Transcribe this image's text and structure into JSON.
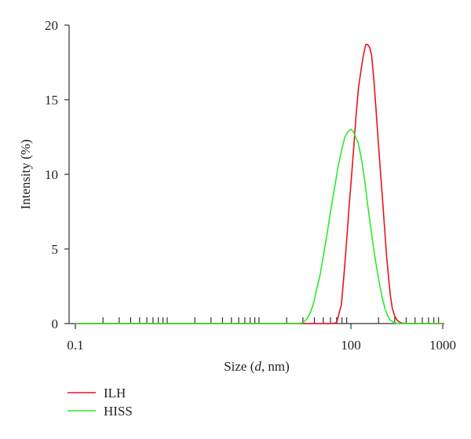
{
  "chart_data": {
    "type": "line",
    "xscale": "log",
    "xlim": [
      0.1,
      1000
    ],
    "ylim": [
      0,
      20
    ],
    "xticks": [
      {
        "value": 0.1,
        "label": "0.1"
      },
      {
        "value": 100,
        "label": "100"
      },
      {
        "value": 1000,
        "label": "1000"
      }
    ],
    "yticks": [
      {
        "value": 0,
        "label": "0"
      },
      {
        "value": 5,
        "label": "5"
      },
      {
        "value": 10,
        "label": "10"
      },
      {
        "value": 15,
        "label": "15"
      },
      {
        "value": 20,
        "label": "20"
      }
    ],
    "xlabel_prefix": "Size (",
    "xlabel_var": "d",
    "xlabel_suffix": ", nm)",
    "ylabel": "Intensity (%)",
    "grid": false,
    "legend_position": "bottom-left",
    "series": [
      {
        "name": "ILH",
        "color": "#e8141e",
        "points": [
          [
            0.1,
            0
          ],
          [
            60,
            0
          ],
          [
            70,
            0.05
          ],
          [
            73,
            0.5
          ],
          [
            76,
            0.9
          ],
          [
            79,
            1.3
          ],
          [
            82,
            2.5
          ],
          [
            86,
            4.0
          ],
          [
            91,
            6.0
          ],
          [
            96,
            8.0
          ],
          [
            102,
            10.0
          ],
          [
            108,
            12.0
          ],
          [
            114,
            14.0
          ],
          [
            121,
            15.8
          ],
          [
            129,
            17.0
          ],
          [
            137,
            18.0
          ],
          [
            145,
            18.7
          ],
          [
            152,
            18.7
          ],
          [
            160,
            18.5
          ],
          [
            168,
            18.0
          ],
          [
            177,
            16.5
          ],
          [
            187,
            14.5
          ],
          [
            197,
            12.5
          ],
          [
            208,
            10.5
          ],
          [
            220,
            8.5
          ],
          [
            232,
            6.5
          ],
          [
            245,
            4.5
          ],
          [
            258,
            3.0
          ],
          [
            270,
            1.8
          ],
          [
            283,
            1.0
          ],
          [
            300,
            0.5
          ],
          [
            320,
            0.2
          ],
          [
            350,
            0.05
          ],
          [
            400,
            0
          ],
          [
            1000,
            0
          ]
        ]
      },
      {
        "name": "HISS",
        "color": "#2ee82e",
        "points": [
          [
            0.1,
            0
          ],
          [
            25,
            0
          ],
          [
            30,
            0.05
          ],
          [
            33,
            0.3
          ],
          [
            36,
            0.7
          ],
          [
            39,
            1.3
          ],
          [
            42,
            2.2
          ],
          [
            46,
            3.2
          ],
          [
            50,
            4.5
          ],
          [
            55,
            6.0
          ],
          [
            60,
            7.5
          ],
          [
            66,
            9.0
          ],
          [
            72,
            10.4
          ],
          [
            79,
            11.6
          ],
          [
            86,
            12.5
          ],
          [
            94,
            12.9
          ],
          [
            101,
            13.0
          ],
          [
            108,
            12.8
          ],
          [
            114,
            12.4
          ],
          [
            119,
            12.2
          ],
          [
            126,
            11.5
          ],
          [
            133,
            10.7
          ],
          [
            142,
            9.5
          ],
          [
            152,
            8.0
          ],
          [
            163,
            6.6
          ],
          [
            175,
            5.2
          ],
          [
            189,
            3.9
          ],
          [
            203,
            2.8
          ],
          [
            218,
            1.8
          ],
          [
            235,
            1.0
          ],
          [
            252,
            0.5
          ],
          [
            270,
            0.2
          ],
          [
            300,
            0.05
          ],
          [
            330,
            0
          ],
          [
            1000,
            0
          ]
        ]
      }
    ]
  }
}
